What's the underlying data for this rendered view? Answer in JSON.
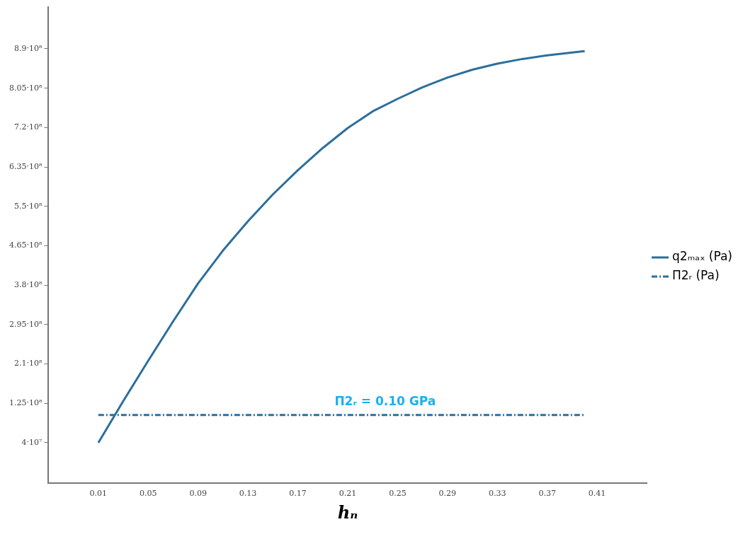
{
  "chart_data": {
    "type": "line",
    "xlabel": "hₙ",
    "xlim": [
      -0.03,
      0.45
    ],
    "xticks": [
      0.01,
      0.05,
      0.09,
      0.13,
      0.17,
      0.21,
      0.25,
      0.29,
      0.33,
      0.37,
      0.41
    ],
    "ylim": [
      -47000000.0,
      980000000.0
    ],
    "yticks": [
      {
        "value": 40000000.0,
        "label": "4·10⁷"
      },
      {
        "value": 125000000.0,
        "label": "1.25·10⁸"
      },
      {
        "value": 210000000.0,
        "label": "2.1·10⁸"
      },
      {
        "value": 295000000.0,
        "label": "2.95·10⁸"
      },
      {
        "value": 380000000.0,
        "label": "3.8·10⁸"
      },
      {
        "value": 465000000.0,
        "label": "4.65·10⁸"
      },
      {
        "value": 550000000.0,
        "label": "5.5·10⁸"
      },
      {
        "value": 635000000.0,
        "label": "6.35·10⁸"
      },
      {
        "value": 720000000.0,
        "label": "7.2·10⁸"
      },
      {
        "value": 805000000.0,
        "label": "8.05·10⁸"
      },
      {
        "value": 890000000.0,
        "label": "8.9·10⁸"
      }
    ],
    "grid": false,
    "legend": "right",
    "marker": "none",
    "series": [
      {
        "name": "q2ₘₐₓ (Pa)",
        "color": "#2c6f9c",
        "line_style": "solid",
        "x": [
          0.01,
          0.03,
          0.05,
          0.07,
          0.09,
          0.11,
          0.13,
          0.15,
          0.17,
          0.19,
          0.21,
          0.23,
          0.25,
          0.27,
          0.29,
          0.31,
          0.33,
          0.35,
          0.37,
          0.4
        ],
        "values": [
          40000000.0,
          130000000.0,
          217000000.0,
          302000000.0,
          384000000.0,
          455000000.0,
          518000000.0,
          576000000.0,
          628000000.0,
          676000000.0,
          719000000.0,
          755000000.0,
          782000000.0,
          807000000.0,
          828000000.0,
          845000000.0,
          858000000.0,
          868000000.0,
          876000000.0,
          885000000.0
        ]
      },
      {
        "name": "Π2ᵣ (Pa)",
        "color": "#2c6f9c",
        "line_style": "dashdot",
        "x": [
          0.01,
          0.4
        ],
        "values": [
          100000000.0,
          100000000.0
        ]
      }
    ],
    "annotations": [
      {
        "text": "Π2ᵣ = 0.10 GPa",
        "x": 0.24,
        "y": 100000000.0
      }
    ]
  }
}
